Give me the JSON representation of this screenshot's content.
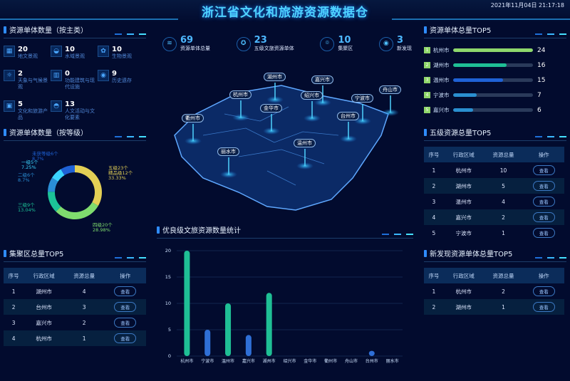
{
  "header": {
    "title": "浙江省文化和旅游资源数据仓",
    "datetime": "2021年11月04日   21:17:18"
  },
  "left": {
    "category_section": {
      "title": "资源单体数量（按主类）",
      "items": [
        {
          "value": "20",
          "label": "地文景观",
          "icon": "landscape-icon"
        },
        {
          "value": "10",
          "label": "水域景观",
          "icon": "water-icon"
        },
        {
          "value": "10",
          "label": "生物景观",
          "icon": "plant-icon"
        },
        {
          "value": "2",
          "label": "天象与气候景观",
          "icon": "weather-icon"
        },
        {
          "value": "0",
          "label": "功能建筑与现代设施",
          "icon": "building-icon"
        },
        {
          "value": "9",
          "label": "历史遗存",
          "icon": "history-icon"
        },
        {
          "value": "5",
          "label": "文化和旅游产品",
          "icon": "bag-icon"
        },
        {
          "value": "13",
          "label": "人文活动与文化要素",
          "icon": "culture-icon"
        }
      ]
    },
    "grade_section": {
      "title": "资源单体数量（按等级）"
    },
    "cluster_section": {
      "title": "集聚区总量TOP5",
      "headers": [
        "序号",
        "行政区域",
        "资源总量",
        "操作"
      ],
      "rows": [
        [
          "1",
          "湖州市",
          "4",
          "查看"
        ],
        [
          "2",
          "台州市",
          "3",
          "查看"
        ],
        [
          "3",
          "嘉兴市",
          "2",
          "查看"
        ],
        [
          "4",
          "杭州市",
          "1",
          "查看"
        ]
      ]
    }
  },
  "kpis": [
    {
      "value": "69",
      "label": "资源单体总量",
      "icon": "layers-icon"
    },
    {
      "value": "23",
      "label": "五级文旅资源单体",
      "icon": "medal-icon"
    },
    {
      "value": "10",
      "label": "集聚区",
      "icon": "location-pin-icon"
    },
    {
      "value": "3",
      "label": "新发现",
      "icon": "eye-icon"
    }
  ],
  "map": {
    "cities": [
      "湖州市",
      "嘉兴市",
      "杭州市",
      "绍兴市",
      "舟山市",
      "宁波市",
      "金华市",
      "衢州市",
      "台州市",
      "丽水市",
      "温州市"
    ]
  },
  "right": {
    "top5": {
      "title": "资源单体总量TOP5",
      "max": 24,
      "rows": [
        {
          "rank": "1",
          "city": "杭州市",
          "value": 24,
          "color": "#8ed86c"
        },
        {
          "rank": "2",
          "city": "湖州市",
          "value": 16,
          "color": "#1fbf95"
        },
        {
          "rank": "3",
          "city": "温州市",
          "value": 15,
          "color": "#1f62d6"
        },
        {
          "rank": "4",
          "city": "宁波市",
          "value": 7,
          "color": "#2a8fd0"
        },
        {
          "rank": "5",
          "city": "嘉兴市",
          "value": 6,
          "color": "#2a8fd0"
        }
      ]
    },
    "grade5": {
      "title": "五级资源总量TOP5",
      "headers": [
        "序号",
        "行政区域",
        "资源总量",
        "操作"
      ],
      "rows": [
        [
          "1",
          "杭州市",
          "10",
          "查看"
        ],
        [
          "2",
          "湖州市",
          "5",
          "查看"
        ],
        [
          "3",
          "温州市",
          "4",
          "查看"
        ],
        [
          "4",
          "嘉兴市",
          "2",
          "查看"
        ],
        [
          "5",
          "宁波市",
          "1",
          "查看"
        ]
      ]
    },
    "newfound": {
      "title": "新发现资源单体总量TOP5",
      "headers": [
        "序号",
        "行政区域",
        "资源总量",
        "操作"
      ],
      "rows": [
        [
          "1",
          "杭州市",
          "2",
          "查看"
        ],
        [
          "2",
          "湖州市",
          "1",
          "查看"
        ]
      ]
    }
  },
  "chart_data": [
    {
      "type": "pie",
      "title": "资源单体数量（按等级）",
      "donut": true,
      "slices": [
        {
          "label": "五级23个",
          "extra": "精品级12个",
          "percent": "33.33%",
          "value": 23,
          "color": "#e3cf55"
        },
        {
          "label": "四级20个",
          "percent": "28.98%",
          "value": 20,
          "color": "#7fdc6e"
        },
        {
          "label": "三级9个",
          "percent": "13.04%",
          "value": 9,
          "color": "#1cc398"
        },
        {
          "label": "二级6个",
          "percent": "8.7%",
          "value": 6,
          "color": "#2a8ed6"
        },
        {
          "label": "一级5个",
          "percent": "7.25%",
          "value": 5,
          "color": "#3bd4ff"
        },
        {
          "label": "未获等级6个",
          "percent": "8.7%",
          "value": 6,
          "color": "#1f62d6"
        }
      ]
    },
    {
      "type": "bar",
      "title": "优良级文旅资源数量统计",
      "categories": [
        "杭州市",
        "宁波市",
        "温州市",
        "嘉兴市",
        "湖州市",
        "绍兴市",
        "金华市",
        "衢州市",
        "舟山市",
        "台州市",
        "丽水市"
      ],
      "values": [
        20,
        5,
        10,
        4,
        12,
        0,
        0,
        0,
        0,
        1,
        0
      ],
      "colors": [
        "#1fbf95",
        "#2f6fd6"
      ],
      "ylim": [
        0,
        20
      ],
      "yticks": [
        0,
        5,
        10,
        15,
        20
      ],
      "grid": true
    }
  ]
}
